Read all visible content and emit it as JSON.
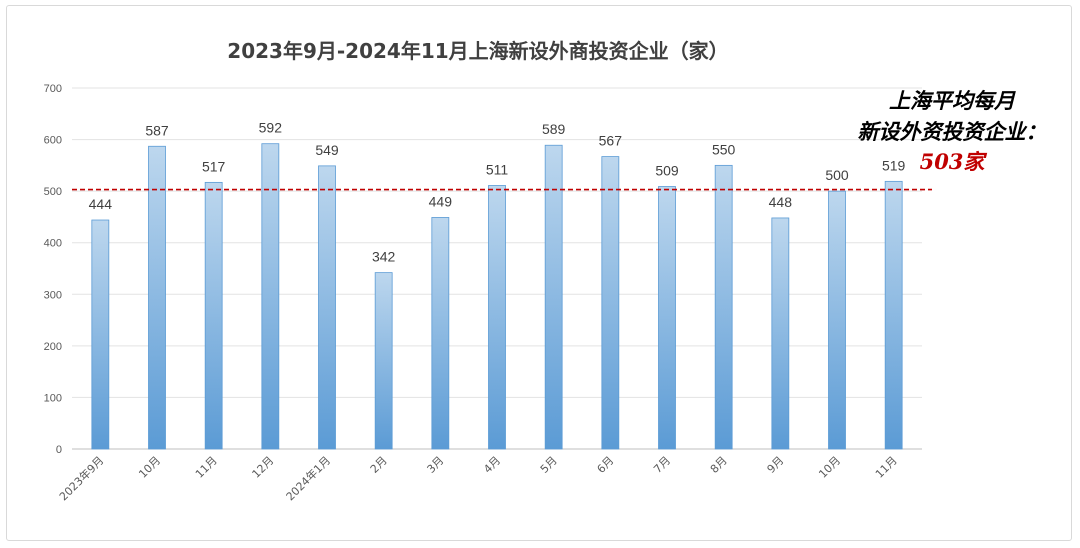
{
  "chart_data": {
    "type": "bar",
    "title": "2023年9月-2024年11月上海新设外商投资企业（家）",
    "categories": [
      "2023年9月",
      "10月",
      "11月",
      "12月",
      "2024年1月",
      "2月",
      "3月",
      "4月",
      "5月",
      "6月",
      "7月",
      "8月",
      "9月",
      "10月",
      "11月"
    ],
    "values": [
      444,
      587,
      517,
      592,
      549,
      342,
      449,
      511,
      589,
      567,
      509,
      550,
      448,
      500,
      519
    ],
    "ylim": [
      0,
      700
    ],
    "yticks": [
      0,
      100,
      200,
      300,
      400,
      500,
      600,
      700
    ],
    "grid": true,
    "bar_color_top": "#bdd7ee",
    "bar_color_bottom": "#5b9bd5",
    "average": {
      "value": 503,
      "line_color": "#c00000",
      "label_line1": "上海平均每月",
      "label_line2": "新设外资投资企业：",
      "label_value": "503家"
    }
  }
}
